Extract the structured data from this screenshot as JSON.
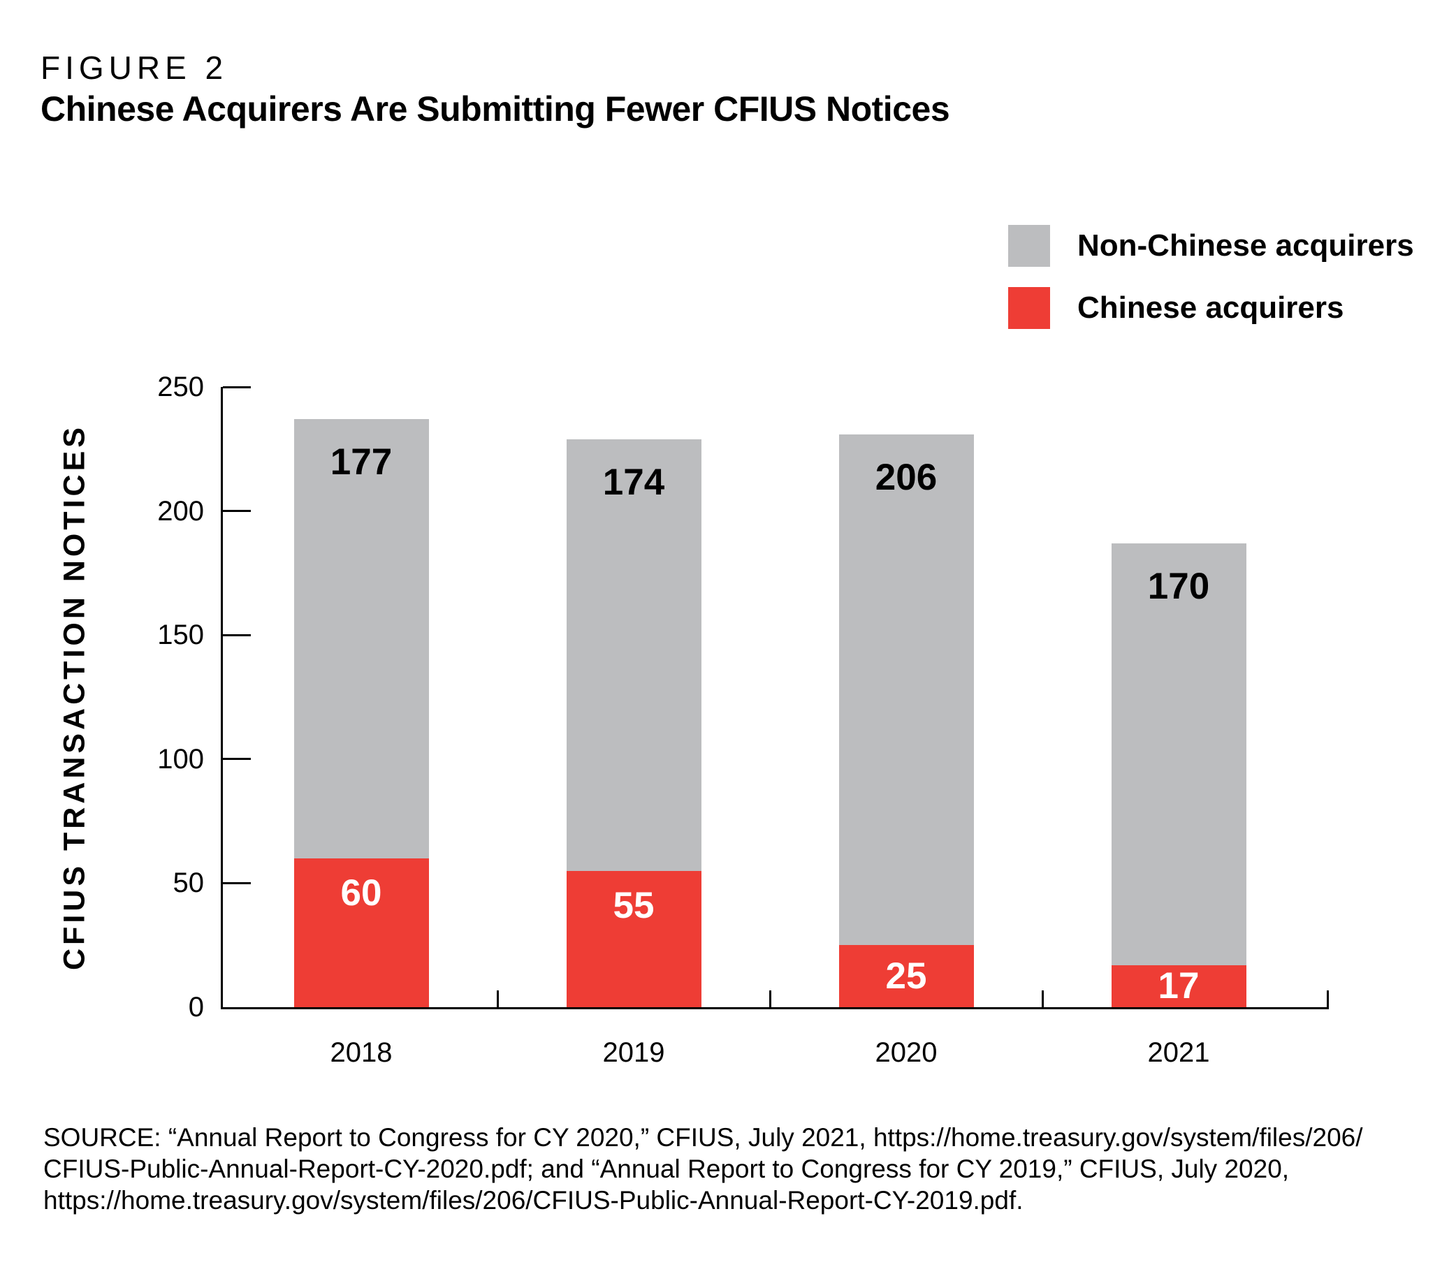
{
  "header": {
    "kicker": "FIGURE 2",
    "title": "Chinese Acquirers Are Submitting Fewer CFIUS Notices"
  },
  "legend": [
    {
      "label": "Non-Chinese acquirers",
      "color": "#BCBDBF"
    },
    {
      "label": "Chinese acquirers",
      "color": "#EE3D35"
    }
  ],
  "chart_data": {
    "type": "bar",
    "stacked": true,
    "categories": [
      "2018",
      "2019",
      "2020",
      "2021"
    ],
    "series": [
      {
        "name": "Chinese acquirers",
        "color": "#EE3D35",
        "label_color": "#FFFFFF",
        "values": [
          60,
          55,
          25,
          17
        ]
      },
      {
        "name": "Non-Chinese acquirers",
        "color": "#BCBDBF",
        "label_color": "#000000",
        "values": [
          177,
          174,
          206,
          170
        ]
      }
    ],
    "title": "Chinese Acquirers Are Submitting Fewer CFIUS Notices",
    "xlabel": "",
    "ylabel": "CFIUS TRANSACTION NOTICES",
    "ylim": [
      0,
      250
    ],
    "yticks": [
      0,
      50,
      100,
      150,
      200,
      250
    ],
    "grid": false,
    "legend_position": "top-right",
    "axis_color": "#000000"
  },
  "source": {
    "lines": [
      "SOURCE: “Annual Report to Congress for CY 2020,” CFIUS, July 2021, https://home.treasury.gov/system/files/206/",
      "CFIUS-Public-Annual-Report-CY-2020.pdf; and “Annual Report to Congress for CY 2019,” CFIUS, July 2020,",
      "https://home.treasury.gov/system/files/206/CFIUS-Public-Annual-Report-CY-2019.pdf."
    ]
  }
}
